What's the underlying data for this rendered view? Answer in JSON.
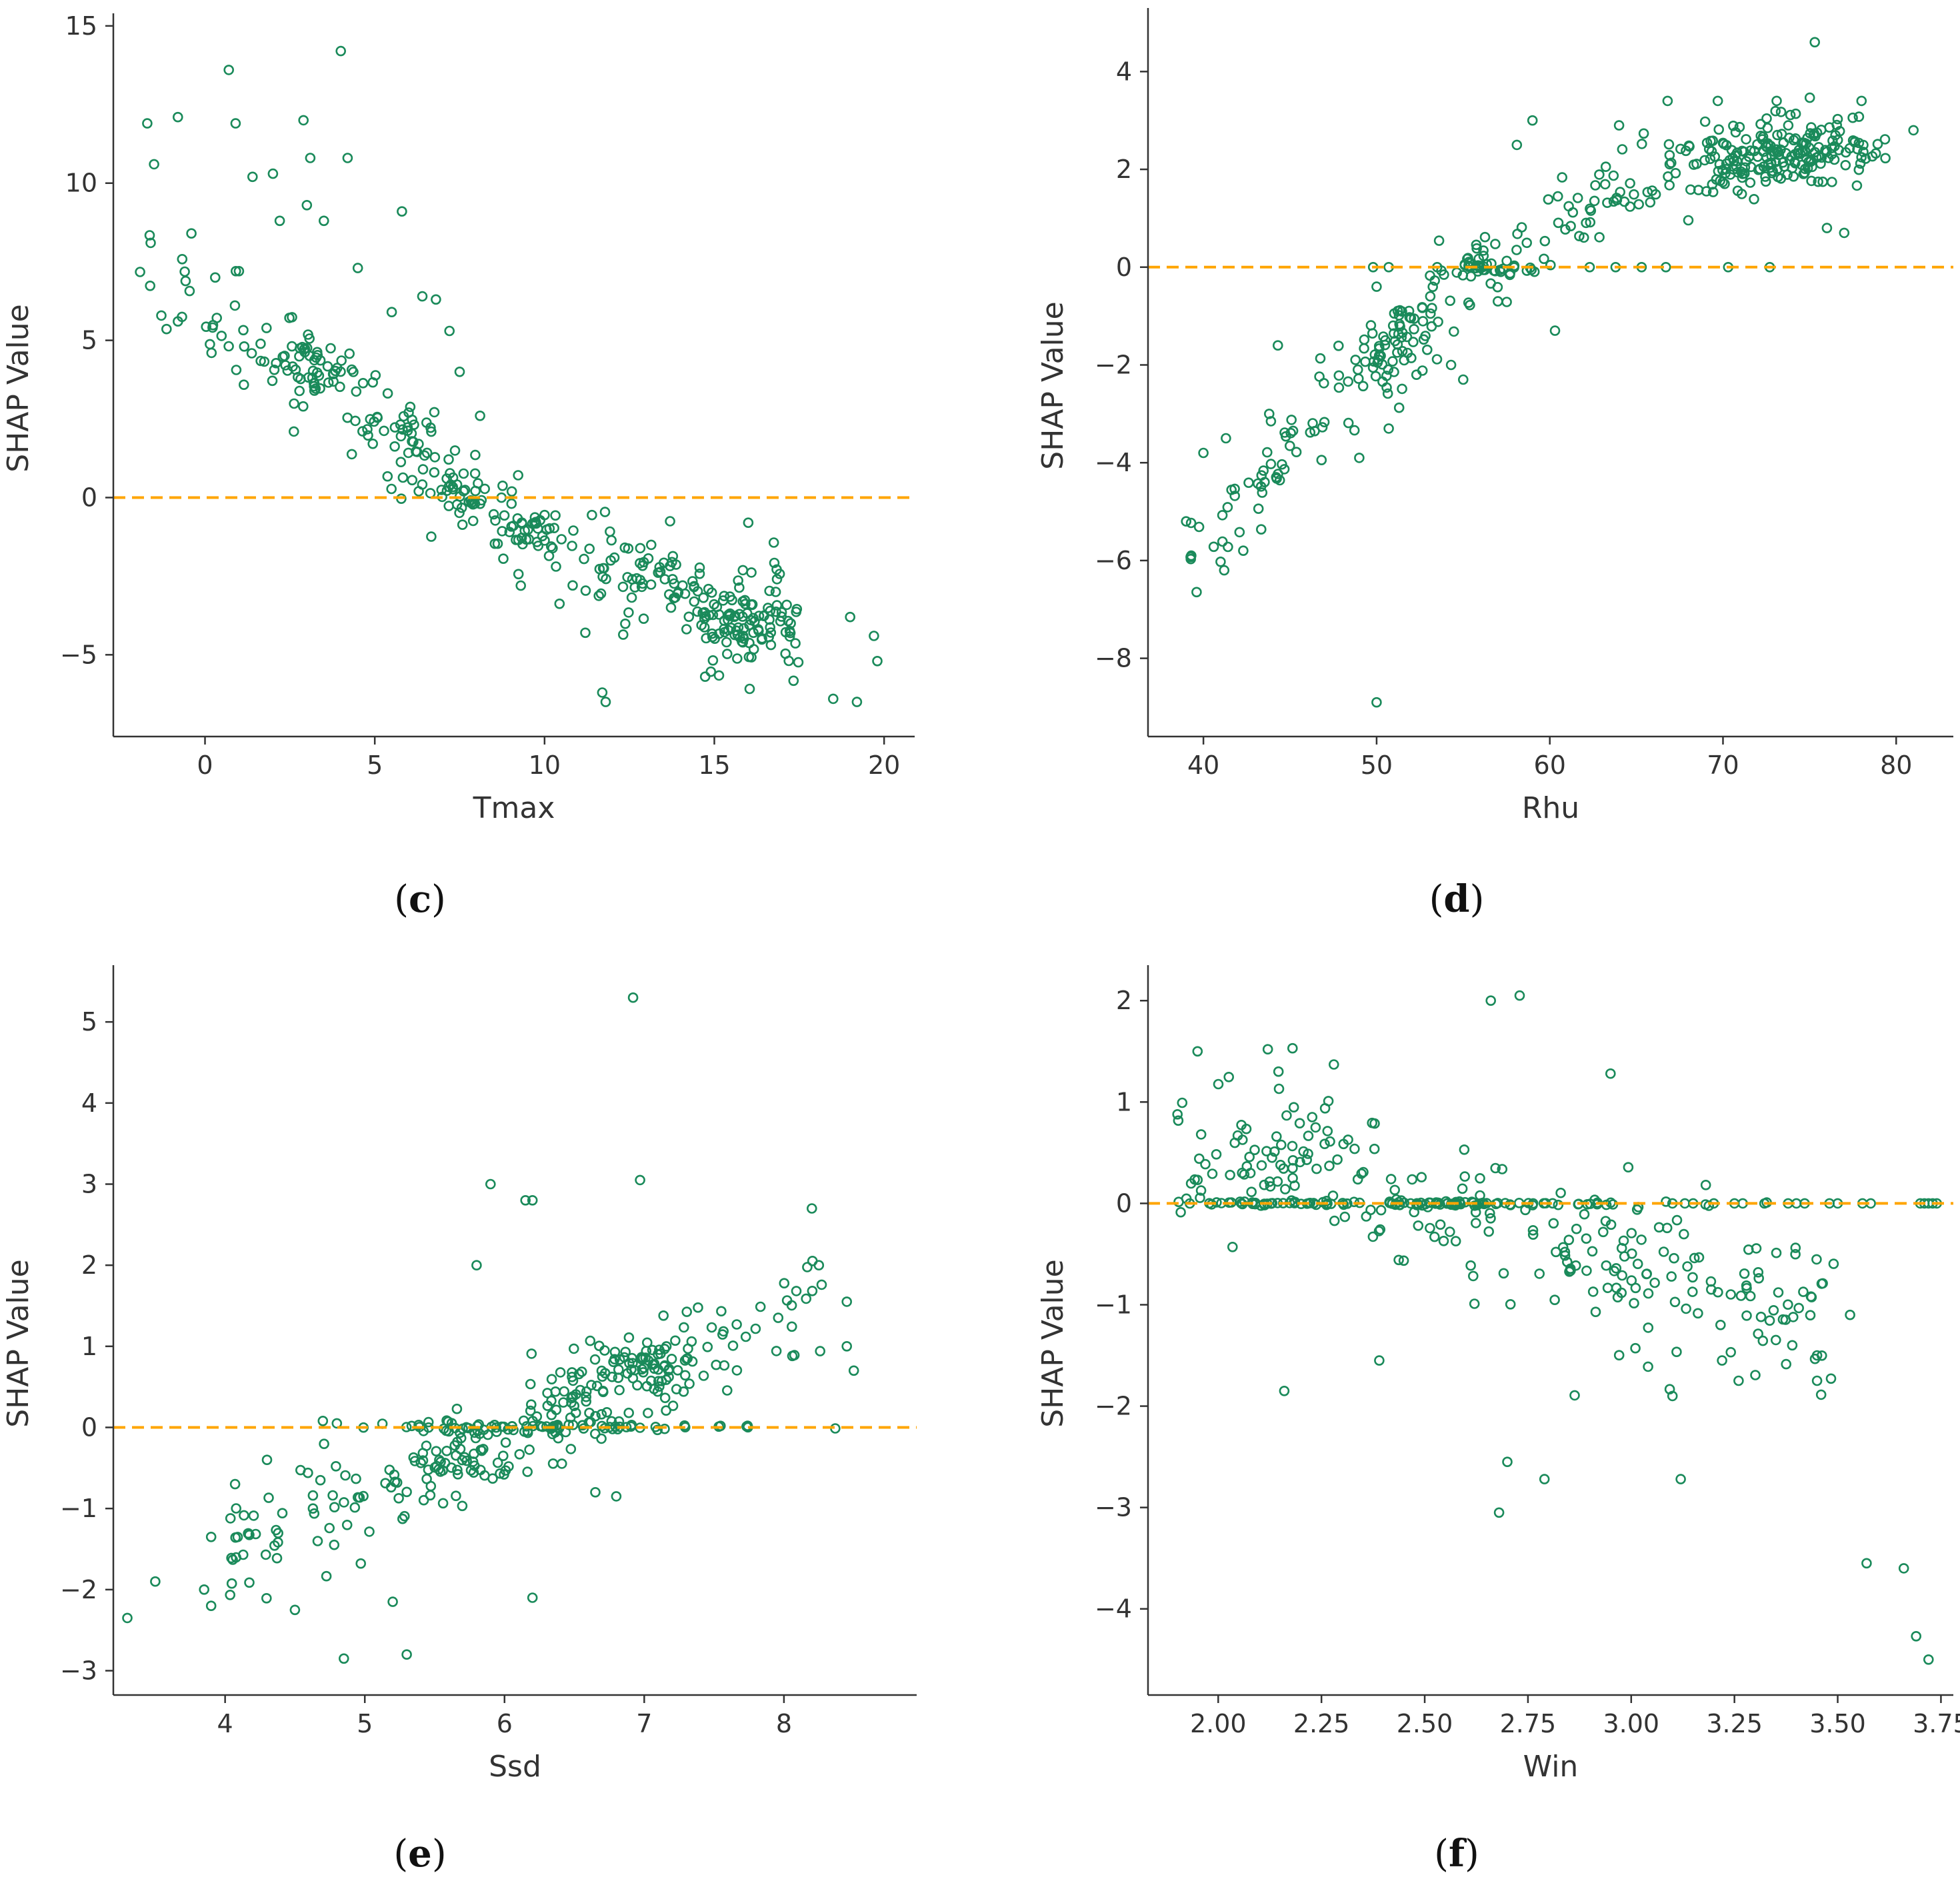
{
  "style": {
    "point_color": "#1a8a5a",
    "ref_line_color": "#ffa500",
    "axis_color": "#333333"
  },
  "chart_data": [
    {
      "id": "c",
      "panel_label": "c",
      "type": "scatter",
      "title": "",
      "xlabel": "Tmax",
      "ylabel": "SHAP Value",
      "xlim": [
        -2.7,
        20.9
      ],
      "ylim": [
        -7.6,
        15.4
      ],
      "xticks": [
        0,
        5,
        10,
        15,
        20
      ],
      "yticks": [
        -5,
        0,
        5,
        10,
        15
      ],
      "reference_line_y": 0,
      "spread": 1.0,
      "outliers": [
        [
          0.7,
          13.6
        ],
        [
          4.0,
          14.2
        ],
        [
          0.9,
          11.9
        ],
        [
          2.9,
          12.0
        ],
        [
          -1.7,
          11.9
        ],
        [
          -0.8,
          12.1
        ],
        [
          5.8,
          9.1
        ],
        [
          3.5,
          8.8
        ],
        [
          1.4,
          10.2
        ],
        [
          2.0,
          10.3
        ],
        [
          3.1,
          10.8
        ],
        [
          4.2,
          10.8
        ],
        [
          -0.4,
          8.4
        ],
        [
          -1.6,
          8.1
        ],
        [
          0.3,
          7.0
        ],
        [
          1.0,
          7.2
        ],
        [
          4.5,
          7.3
        ],
        [
          7.5,
          4.0
        ],
        [
          11.7,
          -6.2
        ],
        [
          11.8,
          -6.5
        ],
        [
          11.2,
          -4.3
        ],
        [
          16.0,
          -0.8
        ],
        [
          18.5,
          -6.4
        ],
        [
          19.2,
          -6.5
        ],
        [
          19.0,
          -3.8
        ],
        [
          19.7,
          -4.4
        ],
        [
          19.8,
          -5.2
        ],
        [
          9.3,
          -2.8
        ],
        [
          6.8,
          6.3
        ],
        [
          6.4,
          6.4
        ],
        [
          7.2,
          5.3
        ],
        [
          5.5,
          5.9
        ],
        [
          8.1,
          2.6
        ],
        [
          3.0,
          9.3
        ],
        [
          -1.5,
          10.6
        ],
        [
          2.2,
          8.8
        ]
      ],
      "trend": [
        [
          -2.0,
          7.2
        ],
        [
          0.0,
          5.8
        ],
        [
          2.0,
          5.0
        ],
        [
          3.0,
          4.2
        ],
        [
          4.0,
          3.4
        ],
        [
          5.0,
          2.8
        ],
        [
          6.0,
          1.6
        ],
        [
          7.0,
          0.4
        ],
        [
          8.0,
          0.0
        ],
        [
          9.0,
          -0.8
        ],
        [
          10.0,
          -1.5
        ],
        [
          12.0,
          -2.4
        ],
        [
          14.0,
          -3.0
        ],
        [
          16.0,
          -3.8
        ],
        [
          17.5,
          -4.6
        ]
      ],
      "clusters": [
        {
          "x": 3.0,
          "y": 4.2,
          "sx": 0.5,
          "sy": 0.5,
          "n": 40
        },
        {
          "x": 6.0,
          "y": 1.6,
          "sx": 0.5,
          "sy": 0.6,
          "n": 35
        },
        {
          "x": 7.5,
          "y": 0.1,
          "sx": 0.6,
          "sy": 0.3,
          "n": 30
        },
        {
          "x": 9.5,
          "y": -1.1,
          "sx": 0.6,
          "sy": 0.4,
          "n": 30
        },
        {
          "x": 12.8,
          "y": -2.5,
          "sx": 0.8,
          "sy": 0.4,
          "n": 40
        },
        {
          "x": 15.8,
          "y": -3.8,
          "sx": 0.8,
          "sy": 0.8,
          "n": 90
        }
      ]
    },
    {
      "id": "d",
      "panel_label": "d",
      "type": "scatter",
      "title": "",
      "xlabel": "Rhu",
      "ylabel": "SHAP Value",
      "xlim": [
        36.8,
        83.3
      ],
      "ylim": [
        -9.6,
        5.3
      ],
      "xticks": [
        40,
        50,
        60,
        70,
        80
      ],
      "yticks": [
        -8,
        -6,
        -4,
        -2,
        0,
        2,
        4
      ],
      "reference_line_y": 0,
      "spread": 0.45,
      "outliers": [
        [
          50.0,
          -8.9
        ],
        [
          60.3,
          -1.3
        ],
        [
          75.3,
          4.6
        ],
        [
          73.1,
          3.4
        ],
        [
          78.0,
          3.4
        ],
        [
          66.8,
          3.4
        ],
        [
          69.7,
          3.4
        ],
        [
          58.1,
          2.5
        ],
        [
          59.0,
          3.0
        ],
        [
          64.0,
          2.9
        ],
        [
          77.0,
          0.7
        ],
        [
          76.0,
          0.8
        ],
        [
          72.7,
          0.0
        ],
        [
          70.3,
          0.0
        ],
        [
          66.7,
          0.0
        ],
        [
          65.3,
          0.0
        ],
        [
          63.8,
          0.0
        ],
        [
          62.3,
          0.0
        ],
        [
          53.5,
          0.0
        ],
        [
          49.8,
          0.0
        ],
        [
          50.7,
          0.0
        ],
        [
          81.0,
          2.8
        ],
        [
          41.2,
          -6.2
        ],
        [
          42.3,
          -5.8
        ],
        [
          39.0,
          -5.2
        ],
        [
          39.3,
          -5.9
        ],
        [
          40.0,
          -3.8
        ],
        [
          41.3,
          -3.5
        ],
        [
          43.8,
          -3.0
        ],
        [
          44.3,
          -1.6
        ],
        [
          49.0,
          -3.9
        ],
        [
          50.7,
          -3.3
        ],
        [
          57.0,
          -0.7
        ],
        [
          55.0,
          -2.3
        ],
        [
          52.3,
          -2.2
        ],
        [
          54.3,
          -2.0
        ]
      ],
      "trend": [
        [
          39.0,
          -5.8
        ],
        [
          42.0,
          -5.0
        ],
        [
          45.0,
          -3.6
        ],
        [
          48.0,
          -2.4
        ],
        [
          50.0,
          -2.0
        ],
        [
          52.0,
          -1.2
        ],
        [
          54.0,
          -0.6
        ],
        [
          56.0,
          0.0
        ],
        [
          58.0,
          0.3
        ],
        [
          60.0,
          1.0
        ],
        [
          62.0,
          1.3
        ],
        [
          65.0,
          1.6
        ],
        [
          68.0,
          2.0
        ],
        [
          71.0,
          2.2
        ],
        [
          74.0,
          2.4
        ],
        [
          77.0,
          2.6
        ],
        [
          79.0,
          2.7
        ]
      ],
      "clusters": [
        {
          "x": 56.5,
          "y": 0.0,
          "sx": 1.2,
          "sy": 0.1,
          "n": 35
        },
        {
          "x": 74.5,
          "y": 2.4,
          "sx": 2.0,
          "sy": 0.35,
          "n": 90
        },
        {
          "x": 70.5,
          "y": 2.2,
          "sx": 1.2,
          "sy": 0.35,
          "n": 40
        },
        {
          "x": 50.0,
          "y": -2.0,
          "sx": 0.8,
          "sy": 0.5,
          "n": 30
        },
        {
          "x": 52.0,
          "y": -1.4,
          "sx": 1.0,
          "sy": 0.5,
          "n": 25
        }
      ]
    },
    {
      "id": "e",
      "panel_label": "e",
      "type": "scatter",
      "title": "",
      "xlabel": "Ssd",
      "ylabel": "SHAP Value",
      "xlim": [
        3.2,
        8.95
      ],
      "ylim": [
        -3.3,
        5.7
      ],
      "xticks": [
        4,
        5,
        6,
        7,
        8
      ],
      "yticks": [
        -3,
        -2,
        -1,
        0,
        1,
        2,
        3,
        4,
        5
      ],
      "reference_line_y": 0,
      "spread": 0.35,
      "outliers": [
        [
          6.92,
          5.3
        ],
        [
          6.97,
          3.05
        ],
        [
          5.9,
          3.0
        ],
        [
          6.15,
          2.8
        ],
        [
          6.2,
          2.8
        ],
        [
          5.8,
          2.0
        ],
        [
          8.2,
          2.7
        ],
        [
          8.5,
          0.7
        ],
        [
          8.45,
          1.0
        ],
        [
          8.45,
          1.55
        ],
        [
          8.25,
          2.0
        ],
        [
          3.3,
          -2.35
        ],
        [
          3.5,
          -1.9
        ],
        [
          3.85,
          -2.0
        ],
        [
          3.9,
          -2.2
        ],
        [
          3.9,
          -1.35
        ],
        [
          4.3,
          -0.4
        ],
        [
          4.85,
          -2.85
        ],
        [
          5.3,
          -2.8
        ],
        [
          6.2,
          -2.1
        ],
        [
          4.5,
          -2.25
        ],
        [
          5.2,
          -2.15
        ],
        [
          6.8,
          -0.85
        ],
        [
          6.65,
          -0.8
        ],
        [
          4.7,
          0.08
        ],
        [
          4.8,
          0.05
        ]
      ],
      "trend": [
        [
          4.0,
          -1.3
        ],
        [
          4.6,
          -1.2
        ],
        [
          5.0,
          -0.9
        ],
        [
          5.5,
          -0.55
        ],
        [
          6.0,
          -0.15
        ],
        [
          6.5,
          0.35
        ],
        [
          7.0,
          0.7
        ],
        [
          7.5,
          1.0
        ],
        [
          8.0,
          1.3
        ],
        [
          8.3,
          1.45
        ]
      ],
      "clusters": [
        {
          "x": 6.3,
          "y": 0.0,
          "sx": 0.7,
          "sy": 0.04,
          "n": 80
        },
        {
          "x": 7.0,
          "y": 0.7,
          "sx": 0.2,
          "sy": 0.2,
          "n": 50
        },
        {
          "x": 5.65,
          "y": -0.5,
          "sx": 0.2,
          "sy": 0.15,
          "n": 30
        },
        {
          "x": 6.5,
          "y": 0.3,
          "sx": 0.15,
          "sy": 0.2,
          "n": 25
        }
      ]
    },
    {
      "id": "f",
      "panel_label": "f",
      "type": "scatter",
      "title": "",
      "xlabel": "Win",
      "ylabel": "SHAP Value",
      "xlim": [
        1.83,
        3.78
      ],
      "ylim": [
        -4.85,
        2.35
      ],
      "xticks": [
        2.0,
        2.25,
        2.5,
        2.75,
        3.0,
        3.25,
        3.5,
        3.75
      ],
      "xtick_labels": [
        "2.00",
        "2.25",
        "2.50",
        "2.75",
        "3.00",
        "3.25",
        "3.50",
        "3.75"
      ],
      "yticks": [
        -4,
        -3,
        -2,
        -1,
        0,
        1,
        2
      ],
      "reference_line_y": 0,
      "spread": 0.4,
      "outliers": [
        [
          2.66,
          2.0
        ],
        [
          2.73,
          2.05
        ],
        [
          2.68,
          -3.05
        ],
        [
          2.7,
          -2.55
        ],
        [
          2.79,
          -2.72
        ],
        [
          3.12,
          -2.72
        ],
        [
          3.57,
          -3.55
        ],
        [
          3.66,
          -3.6
        ],
        [
          3.69,
          -4.27
        ],
        [
          3.72,
          -4.5
        ],
        [
          2.16,
          -1.85
        ],
        [
          2.39,
          -1.55
        ],
        [
          3.1,
          -1.9
        ],
        [
          3.45,
          -1.75
        ],
        [
          3.26,
          -1.75
        ],
        [
          3.45,
          -1.5
        ],
        [
          2.12,
          1.52
        ],
        [
          2.18,
          1.53
        ],
        [
          1.95,
          1.5
        ],
        [
          2.28,
          1.37
        ],
        [
          2.95,
          1.28
        ],
        [
          3.53,
          -1.1
        ],
        [
          3.39,
          -1.4
        ],
        [
          3.22,
          -1.55
        ]
      ],
      "trend": [
        [
          1.9,
          0.4
        ],
        [
          2.1,
          0.45
        ],
        [
          2.3,
          0.35
        ],
        [
          2.5,
          0.1
        ],
        [
          2.7,
          -0.2
        ],
        [
          2.9,
          -0.5
        ],
        [
          3.1,
          -0.75
        ],
        [
          3.3,
          -0.9
        ],
        [
          3.5,
          -1.1
        ]
      ],
      "clusters": [
        {
          "x": 2.45,
          "y": 0.0,
          "sx": 0.3,
          "sy": 0.01,
          "n": 120
        },
        {
          "x": 2.1,
          "y": 0.5,
          "sx": 0.12,
          "sy": 0.3,
          "n": 30
        }
      ],
      "zero_points": [
        3.1,
        3.13,
        3.15,
        3.2,
        3.25,
        3.27,
        3.38,
        3.4,
        3.42,
        3.48,
        3.5,
        3.56,
        3.58,
        3.7,
        3.71,
        3.72,
        3.73,
        3.74
      ]
    }
  ],
  "seed_counts": [
    150,
    220,
    180,
    220
  ]
}
